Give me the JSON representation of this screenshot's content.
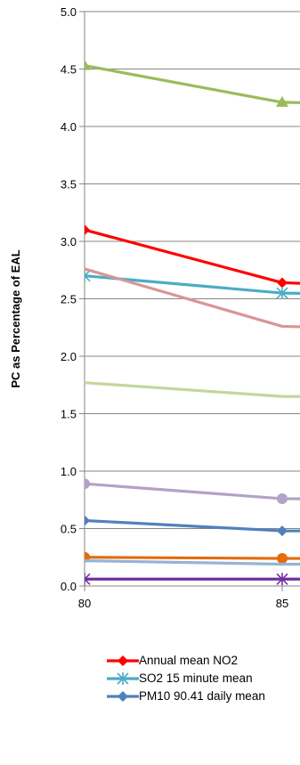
{
  "chart_data": {
    "type": "line",
    "title": "",
    "ylabel": "PC as Percentage of EAL",
    "xlabel": "",
    "x_categories": [
      "80",
      "85"
    ],
    "ylim": [
      0,
      5.0
    ],
    "y_ticks": [
      "0.0",
      "0.5",
      "1.0",
      "1.5",
      "2.0",
      "2.5",
      "3.0",
      "3.5",
      "4.0",
      "4.5",
      "5.0"
    ],
    "grid": "horizontal",
    "legend_position": "bottom",
    "series": [
      {
        "name": "Annual mean NO2",
        "color": "#ff0000",
        "marker": "diamond",
        "values": [
          3.1,
          2.64
        ],
        "next": 2.58
      },
      {
        "name": "SO2 15 minute mean",
        "color": "#4bacc6",
        "marker": "star",
        "values": [
          2.7,
          2.55
        ],
        "next": 2.52
      },
      {
        "name": "PM10 90.41 daily mean",
        "color": "#4f81bd",
        "marker": "diamond",
        "values": [
          0.57,
          0.48
        ],
        "next": 0.47
      },
      {
        "name": "",
        "color": "#9bbb59",
        "marker": "triangle",
        "values": [
          4.53,
          4.21
        ],
        "next": 4.18
      },
      {
        "name": "",
        "color": "#d99694",
        "marker": "none",
        "values": [
          2.76,
          2.26
        ],
        "next": 2.22
      },
      {
        "name": "",
        "color": "#c3d69b",
        "marker": "none",
        "values": [
          1.77,
          1.65
        ],
        "next": 1.64
      },
      {
        "name": "",
        "color": "#b3a2c7",
        "marker": "circle",
        "values": [
          0.89,
          0.76
        ],
        "next": 0.75
      },
      {
        "name": "",
        "color": "#e46c0a",
        "marker": "circle",
        "values": [
          0.25,
          0.24
        ],
        "next": 0.24
      },
      {
        "name": "",
        "color": "#95b3d7",
        "marker": "none",
        "values": [
          0.22,
          0.19
        ],
        "next": 0.19
      },
      {
        "name": "",
        "color": "#7030a0",
        "marker": "star",
        "values": [
          0.06,
          0.06
        ],
        "next": 0.06
      }
    ]
  },
  "legend": [
    {
      "label": "Annual mean NO2",
      "color": "#ff0000",
      "marker": "diamond"
    },
    {
      "label": "SO2 15 minute mean",
      "color": "#4bacc6",
      "marker": "star"
    },
    {
      "label": "PM10 90.41 daily mean",
      "color": "#4f81bd",
      "marker": "diamond"
    }
  ]
}
